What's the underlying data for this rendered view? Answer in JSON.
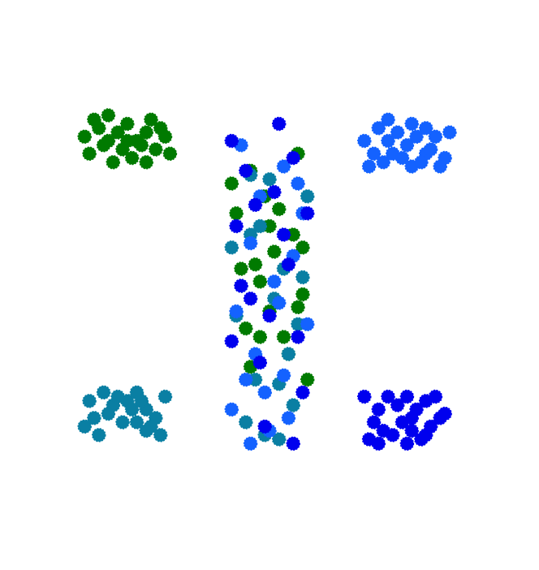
{
  "chart_data": {
    "type": "scatter",
    "title": "",
    "xlabel": "",
    "ylabel": "",
    "axes_visible": false,
    "grid": false,
    "legend": "none",
    "xlim": [
      0,
      10
    ],
    "ylim": [
      0,
      10
    ],
    "series": [
      {
        "color": "#007a00",
        "points": [
          [
            1.1,
            8.7
          ],
          [
            1.4,
            8.9
          ],
          [
            1.6,
            9.2
          ],
          [
            1.8,
            8.8
          ],
          [
            2.0,
            9.0
          ],
          [
            2.2,
            8.6
          ],
          [
            2.4,
            8.8
          ],
          [
            2.6,
            8.4
          ],
          [
            2.8,
            8.7
          ],
          [
            1.2,
            8.3
          ],
          [
            1.5,
            8.5
          ],
          [
            1.9,
            8.4
          ],
          [
            2.1,
            8.2
          ],
          [
            2.3,
            8.5
          ],
          [
            2.5,
            9.1
          ],
          [
            2.7,
            8.9
          ],
          [
            1.3,
            9.1
          ],
          [
            1.7,
            8.1
          ],
          [
            2.9,
            8.3
          ],
          [
            2.0,
            8.6
          ],
          [
            1.6,
            8.6
          ],
          [
            2.4,
            8.1
          ],
          [
            4.5,
            4.2
          ],
          [
            5.1,
            6.0
          ],
          [
            5.6,
            4.7
          ],
          [
            4.3,
            6.9
          ],
          [
            4.8,
            5.3
          ],
          [
            4.6,
            3.3
          ],
          [
            5.4,
            3.6
          ],
          [
            5.0,
            4.6
          ],
          [
            5.5,
            6.4
          ],
          [
            4.9,
            7.3
          ],
          [
            5.7,
            5.0
          ],
          [
            4.2,
            7.6
          ],
          [
            5.3,
            4.0
          ],
          [
            4.7,
            5.7
          ],
          [
            5.8,
            3.0
          ],
          [
            5.2,
            7.0
          ],
          [
            4.4,
            5.6
          ],
          [
            5.6,
            8.3
          ],
          [
            4.6,
            7.9
          ],
          [
            5.0,
            6.6
          ],
          [
            5.7,
            6.1
          ],
          [
            4.8,
            4.0
          ]
        ]
      },
      {
        "color": "#0a7fa3",
        "points": [
          [
            1.2,
            2.5
          ],
          [
            1.5,
            2.7
          ],
          [
            1.7,
            2.4
          ],
          [
            2.0,
            2.5
          ],
          [
            2.2,
            2.7
          ],
          [
            2.4,
            2.3
          ],
          [
            2.6,
            2.1
          ],
          [
            2.8,
            2.6
          ],
          [
            1.3,
            2.1
          ],
          [
            1.6,
            2.2
          ],
          [
            1.9,
            2.0
          ],
          [
            2.1,
            2.3
          ],
          [
            2.3,
            2.5
          ],
          [
            2.5,
            1.9
          ],
          [
            2.7,
            1.7
          ],
          [
            1.1,
            1.9
          ],
          [
            1.4,
            1.7
          ],
          [
            2.2,
            2.0
          ],
          [
            2.4,
            1.8
          ],
          [
            1.8,
            2.6
          ],
          [
            4.3,
            4.5
          ],
          [
            4.6,
            6.4
          ],
          [
            5.1,
            4.9
          ],
          [
            5.4,
            3.6
          ],
          [
            4.5,
            2.0
          ],
          [
            5.2,
            2.9
          ],
          [
            4.8,
            6.6
          ],
          [
            5.6,
            4.3
          ],
          [
            4.4,
            5.2
          ],
          [
            5.0,
            7.7
          ],
          [
            5.5,
            2.4
          ],
          [
            4.7,
            3.0
          ],
          [
            5.3,
            5.6
          ],
          [
            4.9,
            1.7
          ],
          [
            5.7,
            5.4
          ],
          [
            4.2,
            6.1
          ],
          [
            5.8,
            7.3
          ],
          [
            4.6,
            7.8
          ],
          [
            5.2,
            1.6
          ]
        ]
      },
      {
        "color": "#1462ff",
        "points": [
          [
            7.0,
            8.6
          ],
          [
            7.3,
            8.9
          ],
          [
            7.5,
            8.6
          ],
          [
            7.7,
            8.8
          ],
          [
            7.9,
            8.5
          ],
          [
            8.1,
            8.7
          ],
          [
            8.3,
            8.3
          ],
          [
            8.5,
            8.7
          ],
          [
            8.7,
            8.2
          ],
          [
            7.2,
            8.3
          ],
          [
            7.4,
            8.1
          ],
          [
            7.6,
            8.3
          ],
          [
            7.8,
            8.2
          ],
          [
            8.0,
            8.0
          ],
          [
            8.2,
            8.1
          ],
          [
            8.4,
            8.4
          ],
          [
            8.6,
            8.0
          ],
          [
            8.8,
            8.8
          ],
          [
            7.5,
            9.1
          ],
          [
            8.0,
            9.0
          ],
          [
            7.1,
            8.0
          ],
          [
            8.3,
            8.9
          ],
          [
            4.4,
            8.5
          ],
          [
            4.8,
            7.3
          ],
          [
            5.3,
            8.0
          ],
          [
            4.6,
            6.2
          ],
          [
            5.1,
            5.3
          ],
          [
            5.6,
            7.6
          ],
          [
            4.3,
            4.6
          ],
          [
            4.9,
            2.7
          ],
          [
            5.4,
            2.1
          ],
          [
            4.7,
            3.6
          ],
          [
            5.2,
            4.8
          ],
          [
            5.5,
            5.9
          ],
          [
            4.5,
            3.0
          ],
          [
            5.0,
            1.8
          ],
          [
            5.7,
            6.9
          ],
          [
            4.2,
            2.3
          ],
          [
            5.8,
            4.3
          ],
          [
            4.6,
            1.5
          ],
          [
            5.3,
            3.1
          ]
        ]
      },
      {
        "color": "#0000ee",
        "points": [
          [
            7.0,
            2.6
          ],
          [
            7.3,
            2.3
          ],
          [
            7.5,
            2.6
          ],
          [
            7.7,
            2.4
          ],
          [
            7.9,
            2.6
          ],
          [
            8.1,
            2.3
          ],
          [
            8.3,
            2.5
          ],
          [
            8.5,
            2.6
          ],
          [
            8.7,
            2.2
          ],
          [
            7.2,
            2.0
          ],
          [
            7.4,
            1.8
          ],
          [
            7.6,
            1.7
          ],
          [
            7.8,
            2.0
          ],
          [
            8.0,
            1.8
          ],
          [
            8.2,
            1.6
          ],
          [
            8.4,
            1.9
          ],
          [
            8.6,
            2.1
          ],
          [
            7.1,
            1.6
          ],
          [
            7.3,
            1.5
          ],
          [
            7.9,
            1.5
          ],
          [
            8.0,
            2.1
          ],
          [
            8.3,
            1.7
          ],
          [
            4.2,
            8.6
          ],
          [
            4.5,
            7.9
          ],
          [
            5.2,
            9.0
          ],
          [
            5.5,
            8.2
          ],
          [
            4.7,
            7.1
          ],
          [
            5.3,
            6.4
          ],
          [
            4.4,
            5.2
          ],
          [
            5.0,
            4.5
          ],
          [
            5.6,
            4.0
          ],
          [
            4.8,
            3.4
          ],
          [
            5.4,
            5.7
          ],
          [
            4.3,
            6.6
          ],
          [
            5.7,
            2.7
          ],
          [
            4.9,
            1.9
          ],
          [
            5.1,
            7.4
          ],
          [
            4.6,
            4.9
          ],
          [
            5.8,
            6.9
          ],
          [
            5.5,
            1.5
          ],
          [
            4.2,
            3.9
          ]
        ]
      }
    ]
  }
}
